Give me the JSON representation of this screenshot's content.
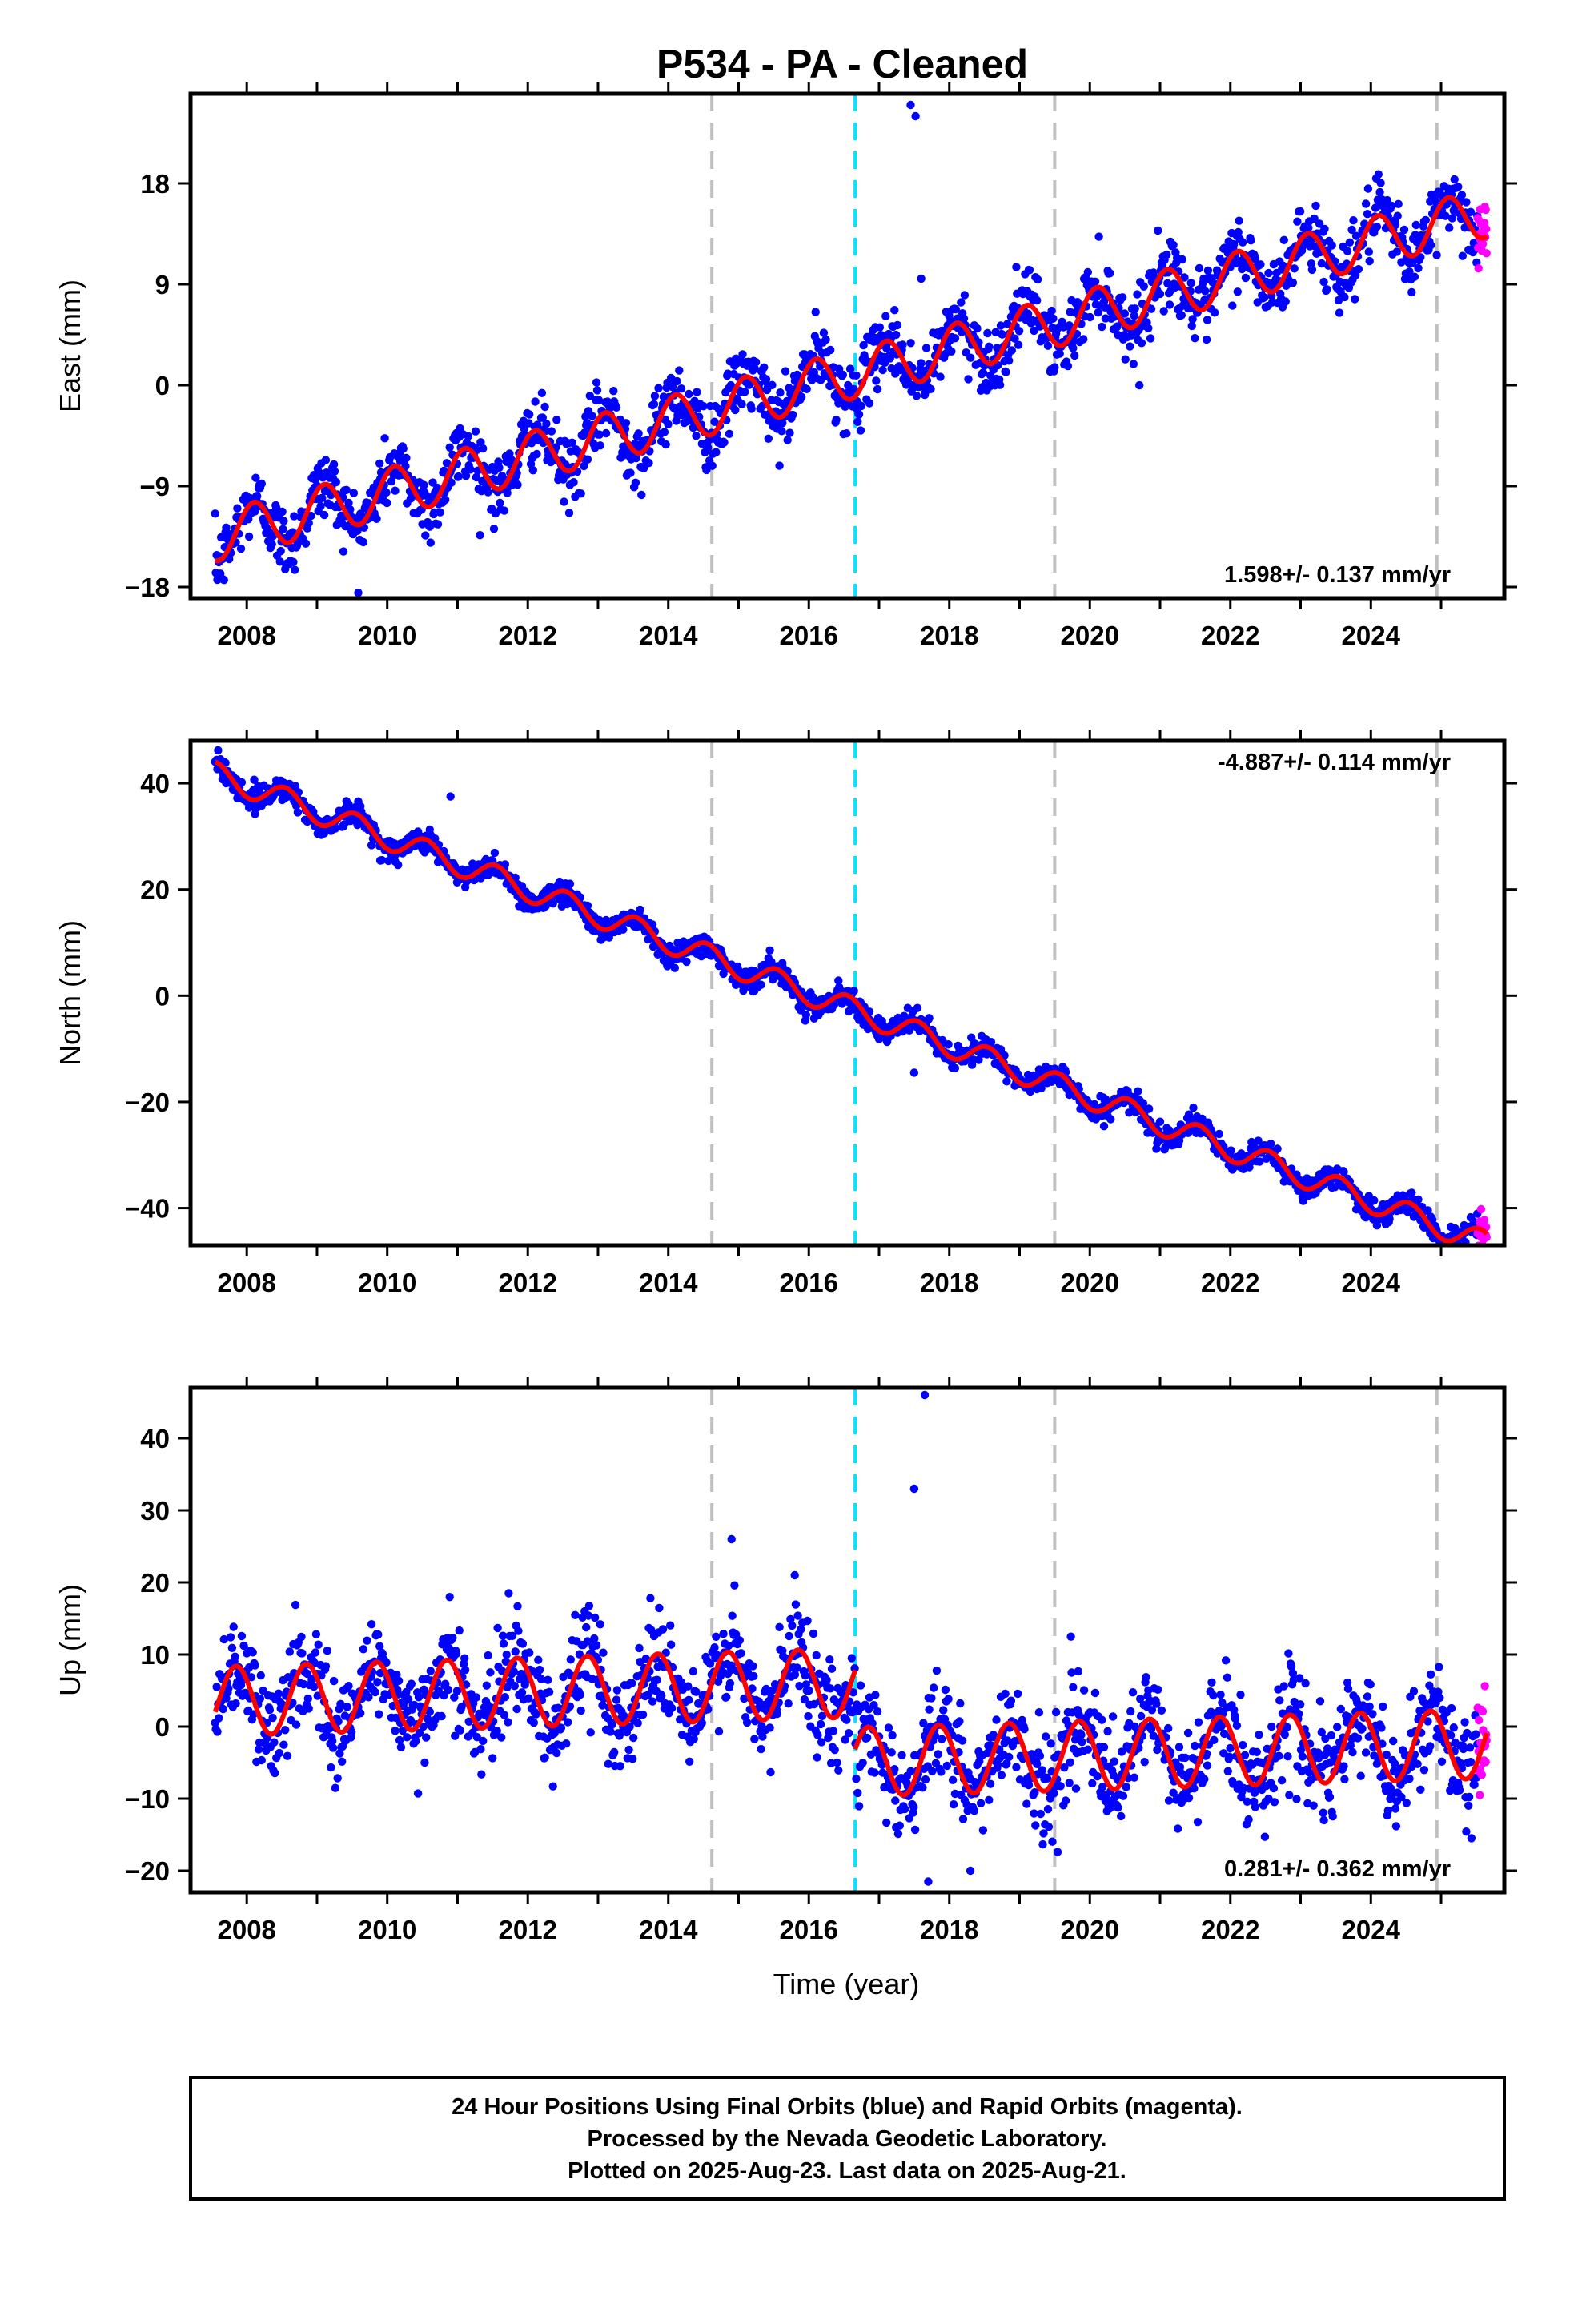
{
  "title": "P534  - PA - Cleaned",
  "x_axis_label": "Time (year)",
  "footer": {
    "line1": "24 Hour Positions Using Final Orbits (blue) and Rapid Orbits (magenta).",
    "line2": "Processed by the Nevada Geodetic Laboratory.",
    "line3": "Plotted on 2025-Aug-23. Last data on 2025-Aug-21."
  },
  "colors": {
    "final_orbits": "#0000ff",
    "rapid_orbits": "#ff00ff",
    "model_fit": "#ff0000",
    "equipment_change": "#c0c0c0",
    "earthquake_marker": "#00e5ff"
  },
  "chart_data": [
    {
      "type": "scatter",
      "panel": "east",
      "ylabel": "East (mm)",
      "rate_text": "1.598+/- 0.137 mm/yr",
      "rate_position": "bottom-right",
      "xlim": [
        2007.2,
        2025.9
      ],
      "ylim": [
        -19,
        26
      ],
      "x_ticks": [
        2008,
        2010,
        2012,
        2014,
        2016,
        2018,
        2020,
        2022,
        2024
      ],
      "y_ticks": [
        -18,
        -9,
        0,
        9,
        18
      ],
      "y_tick_labels": [
        "−18",
        "−9",
        "0",
        "9",
        "18"
      ],
      "vertical_lines": [
        {
          "x": 2014.62,
          "kind": "equipment_change"
        },
        {
          "x": 2016.66,
          "kind": "earthquake_marker"
        },
        {
          "x": 2019.5,
          "kind": "equipment_change"
        },
        {
          "x": 2024.94,
          "kind": "equipment_change"
        }
      ],
      "fit_segments": [
        {
          "x0": 2007.55,
          "x1": 2025.65,
          "intercept_at_2007_5": -13.6,
          "slope_mm_per_yr": 1.598,
          "annual_amplitude": 2.2,
          "annual_peak_phase": 0.1
        }
      ],
      "series": [
        {
          "name": "Final Orbits",
          "color": "#0000ff",
          "x_range": [
            2007.55,
            2025.52
          ],
          "scatter_sd": 1.5
        },
        {
          "name": "Rapid Orbits",
          "color": "#ff00ff",
          "x_range": [
            2025.52,
            2025.65
          ],
          "scatter_sd": 1.5
        }
      ],
      "outliers": [
        {
          "x": 2017.45,
          "y": 25.0
        },
        {
          "x": 2017.52,
          "y": 24.0
        },
        {
          "x": 2017.6,
          "y": 9.5
        }
      ]
    },
    {
      "type": "scatter",
      "panel": "north",
      "ylabel": "North (mm)",
      "rate_text": "-4.887+/- 0.114 mm/yr",
      "rate_position": "top-right",
      "xlim": [
        2007.2,
        2025.9
      ],
      "ylim": [
        -47,
        48
      ],
      "x_ticks": [
        2008,
        2010,
        2012,
        2014,
        2016,
        2018,
        2020,
        2022,
        2024
      ],
      "y_ticks": [
        -40,
        -20,
        0,
        20,
        40
      ],
      "y_tick_labels": [
        "−40",
        "−20",
        "0",
        "20",
        "40"
      ],
      "vertical_lines": [
        {
          "x": 2014.62,
          "kind": "equipment_change"
        },
        {
          "x": 2016.66,
          "kind": "earthquake_marker"
        },
        {
          "x": 2019.5,
          "kind": "equipment_change"
        },
        {
          "x": 2024.94,
          "kind": "equipment_change"
        }
      ],
      "fit_segments": [
        {
          "x0": 2007.55,
          "x1": 2025.65,
          "intercept_at_2007_5": 42.0,
          "slope_mm_per_yr": -4.887,
          "annual_amplitude": 2.3,
          "annual_peak_phase": 0.55
        }
      ],
      "series": [
        {
          "name": "Final Orbits",
          "color": "#0000ff",
          "x_range": [
            2007.55,
            2025.52
          ],
          "scatter_sd": 1.1
        },
        {
          "name": "Rapid Orbits",
          "color": "#ff00ff",
          "x_range": [
            2025.52,
            2025.65
          ],
          "scatter_sd": 1.5
        }
      ],
      "outliers": [
        {
          "x": 2010.9,
          "y": 37.5
        },
        {
          "x": 2017.5,
          "y": -14.5
        }
      ]
    },
    {
      "type": "scatter",
      "panel": "up",
      "ylabel": "Up (mm)",
      "rate_text": "0.281+/- 0.362 mm/yr",
      "rate_position": "bottom-right",
      "xlim": [
        2007.2,
        2025.9
      ],
      "ylim": [
        -23,
        47
      ],
      "x_ticks": [
        2008,
        2010,
        2012,
        2014,
        2016,
        2018,
        2020,
        2022,
        2024
      ],
      "y_ticks": [
        -20,
        -10,
        0,
        10,
        20,
        30,
        40
      ],
      "y_tick_labels": [
        "−20",
        "−10",
        "0",
        "10",
        "20",
        "30",
        "40"
      ],
      "vertical_lines": [
        {
          "x": 2014.62,
          "kind": "equipment_change"
        },
        {
          "x": 2016.66,
          "kind": "earthquake_marker"
        },
        {
          "x": 2019.5,
          "kind": "equipment_change"
        },
        {
          "x": 2024.94,
          "kind": "equipment_change"
        }
      ],
      "fit_segments": [
        {
          "x0": 2007.55,
          "x1": 2016.66,
          "intercept_at_2007_5": 3.5,
          "slope_mm_per_yr": 0.281,
          "annual_amplitude": 4.8,
          "annual_peak_phase": 0.85
        },
        {
          "x0": 2016.66,
          "x1": 2025.65,
          "intercept_at_2007_5": -7.5,
          "slope_mm_per_yr": 0.281,
          "annual_amplitude": 4.8,
          "annual_peak_phase": 0.85
        }
      ],
      "series": [
        {
          "name": "Final Orbits",
          "color": "#0000ff",
          "x_range": [
            2007.55,
            2025.52
          ],
          "scatter_sd": 3.6
        },
        {
          "name": "Rapid Orbits",
          "color": "#ff00ff",
          "x_range": [
            2025.52,
            2025.65
          ],
          "scatter_sd": 3.5
        }
      ],
      "outliers": [
        {
          "x": 2017.5,
          "y": 33.0
        },
        {
          "x": 2017.65,
          "y": 46.0
        },
        {
          "x": 2014.9,
          "y": 26.0
        },
        {
          "x": 2015.8,
          "y": 21.0
        },
        {
          "x": 2017.7,
          "y": -21.5
        },
        {
          "x": 2018.3,
          "y": -20.0
        }
      ]
    }
  ]
}
